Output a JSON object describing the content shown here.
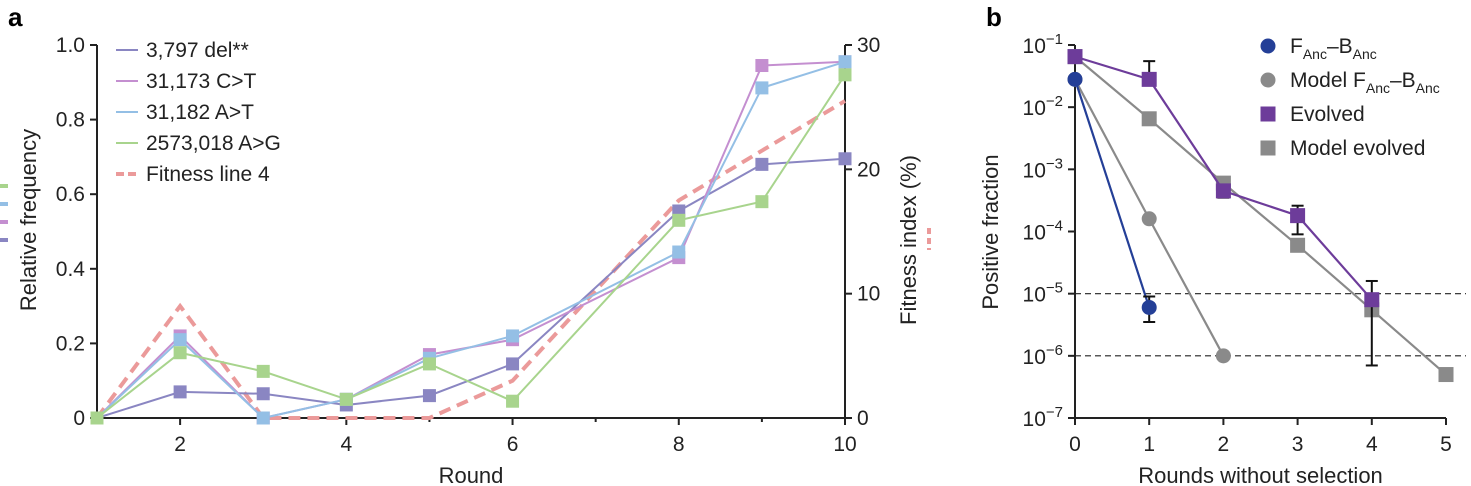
{
  "chart_data": [
    {
      "type": "line",
      "panel_label": "a",
      "xlabel": "Round",
      "ylabel": "Relative frequency",
      "y2label": "Fitness index (%)",
      "xlim": [
        1,
        10
      ],
      "ylim": [
        0,
        1.0
      ],
      "y2lim": [
        0,
        30
      ],
      "xticks": [
        2,
        4,
        6,
        8,
        10
      ],
      "yticks": [
        0,
        0.2,
        0.4,
        0.6,
        0.8,
        1.0
      ],
      "ytick_labels": [
        "0",
        "0.2",
        "0.4",
        "0.6",
        "0.8",
        "1.0"
      ],
      "y2ticks": [
        0,
        10,
        20,
        30
      ],
      "legend_position": "top-left",
      "x": [
        1,
        2,
        3,
        4,
        5,
        6,
        8,
        9,
        10
      ],
      "series": [
        {
          "name": "3,797 del**",
          "color": "#8a86c2",
          "marker": "square",
          "values": [
            0,
            0.07,
            0.065,
            0.035,
            0.06,
            0.145,
            0.555,
            0.68,
            0.695
          ]
        },
        {
          "name": "31,173 C>T",
          "color": "#c48fd0",
          "marker": "square",
          "values": [
            0,
            0.22,
            0,
            0.05,
            0.17,
            0.21,
            0.43,
            0.945,
            0.955
          ]
        },
        {
          "name": "31,182 A>T",
          "color": "#94bfe5",
          "marker": "square",
          "values": [
            0,
            0.21,
            0,
            0.05,
            0.16,
            0.22,
            0.445,
            0.885,
            0.955
          ]
        },
        {
          "name": "2573,018 A>G",
          "color": "#a8d48d",
          "marker": "square",
          "values": [
            0,
            0.175,
            0.125,
            0.05,
            0.145,
            0.045,
            0.53,
            0.58,
            0.92
          ]
        }
      ],
      "fitness_series": {
        "name": "Fitness line 4",
        "color": "#eb9a9a",
        "axis": "right",
        "values": [
          0,
          9,
          0,
          0,
          0,
          3,
          17.5,
          21.5,
          25.5
        ]
      }
    },
    {
      "type": "line",
      "panel_label": "b",
      "xlabel": "Rounds without selection",
      "ylabel": "Positive fraction",
      "yscale": "log",
      "xlim": [
        0,
        5
      ],
      "ylim": [
        1e-07,
        0.1
      ],
      "xticks": [
        0,
        1,
        2,
        3,
        4,
        5
      ],
      "ytick_exponents": [
        -1,
        -2,
        -3,
        -4,
        -5,
        -6,
        -7
      ],
      "tick_base": "10",
      "reference_lines": [
        1e-05,
        1e-06
      ],
      "legend_position": "top-right",
      "series": [
        {
          "name": "F",
          "name_sub": "Anc",
          "name_dash": "–B",
          "name_sub2": "Anc",
          "color": "#243f97",
          "marker": "circle",
          "x": [
            0,
            1
          ],
          "values": [
            0.028,
            6e-06
          ],
          "err_low": [
            null,
            3.5e-06
          ],
          "err_high": [
            null,
            9e-06
          ]
        },
        {
          "name": "Model F",
          "name_sub": "Anc",
          "name_dash": "–B",
          "name_sub2": "Anc",
          "color": "#8a8a8a",
          "marker": "circle",
          "x": [
            0,
            1,
            2
          ],
          "values": [
            0.028,
            0.00016,
            1e-06
          ]
        },
        {
          "name": "Evolved",
          "color": "#6d3c9a",
          "marker": "square",
          "x": [
            0,
            1,
            2,
            3,
            4
          ],
          "values": [
            0.065,
            0.028,
            0.00045,
            0.00018,
            8e-06
          ],
          "err_low": [
            null,
            0.028,
            0.00035,
            9e-05,
            7e-07
          ],
          "err_high": [
            null,
            0.055,
            0.00055,
            0.00026,
            1.6e-05
          ]
        },
        {
          "name": "Model evolved",
          "color": "#8a8a8a",
          "marker": "square",
          "x": [
            0,
            1,
            2,
            3,
            4,
            5
          ],
          "values": [
            0.065,
            0.0065,
            0.0006,
            6e-05,
            5.5e-06,
            5e-07
          ]
        }
      ]
    }
  ]
}
